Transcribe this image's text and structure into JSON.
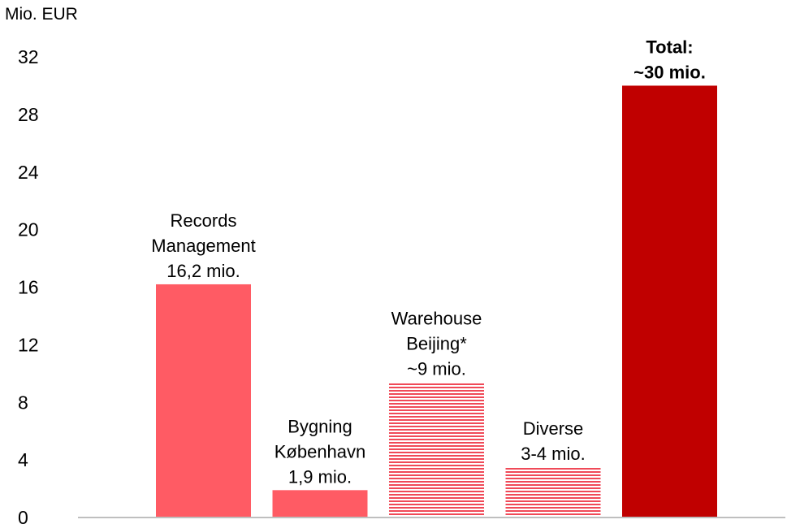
{
  "chart_data": {
    "type": "bar",
    "ylabel": "Mio. EUR",
    "ylim": [
      0,
      32
    ],
    "yticks": [
      0,
      4,
      8,
      12,
      16,
      20,
      24,
      28,
      32
    ],
    "grid": false,
    "legend": "none",
    "bars": [
      {
        "label_lines": [
          "Records",
          "Management",
          "16,2 mio."
        ],
        "value": 16.2,
        "color": "#FF5B64",
        "pattern": "solid",
        "bold": false
      },
      {
        "label_lines": [
          "Bygning",
          "København",
          "1,9 mio."
        ],
        "value": 1.9,
        "color": "#FF5B64",
        "pattern": "solid",
        "bold": false
      },
      {
        "label_lines": [
          "Warehouse",
          "Beijing*",
          "~9 mio."
        ],
        "value": 9.4,
        "color": "#F04A58",
        "pattern": "horizontal-stripes",
        "bold": false
      },
      {
        "label_lines": [
          "Diverse",
          "3-4 mio."
        ],
        "value": 3.5,
        "color": "#F04A58",
        "pattern": "horizontal-stripes",
        "bold": false
      },
      {
        "label_lines": [
          "Total:",
          "~30 mio."
        ],
        "value": 30,
        "color": "#C00000",
        "pattern": "solid",
        "bold": true
      }
    ],
    "colors": {
      "axis": "#BFBFBF",
      "stripe_gap": "#FFFFFF"
    }
  }
}
